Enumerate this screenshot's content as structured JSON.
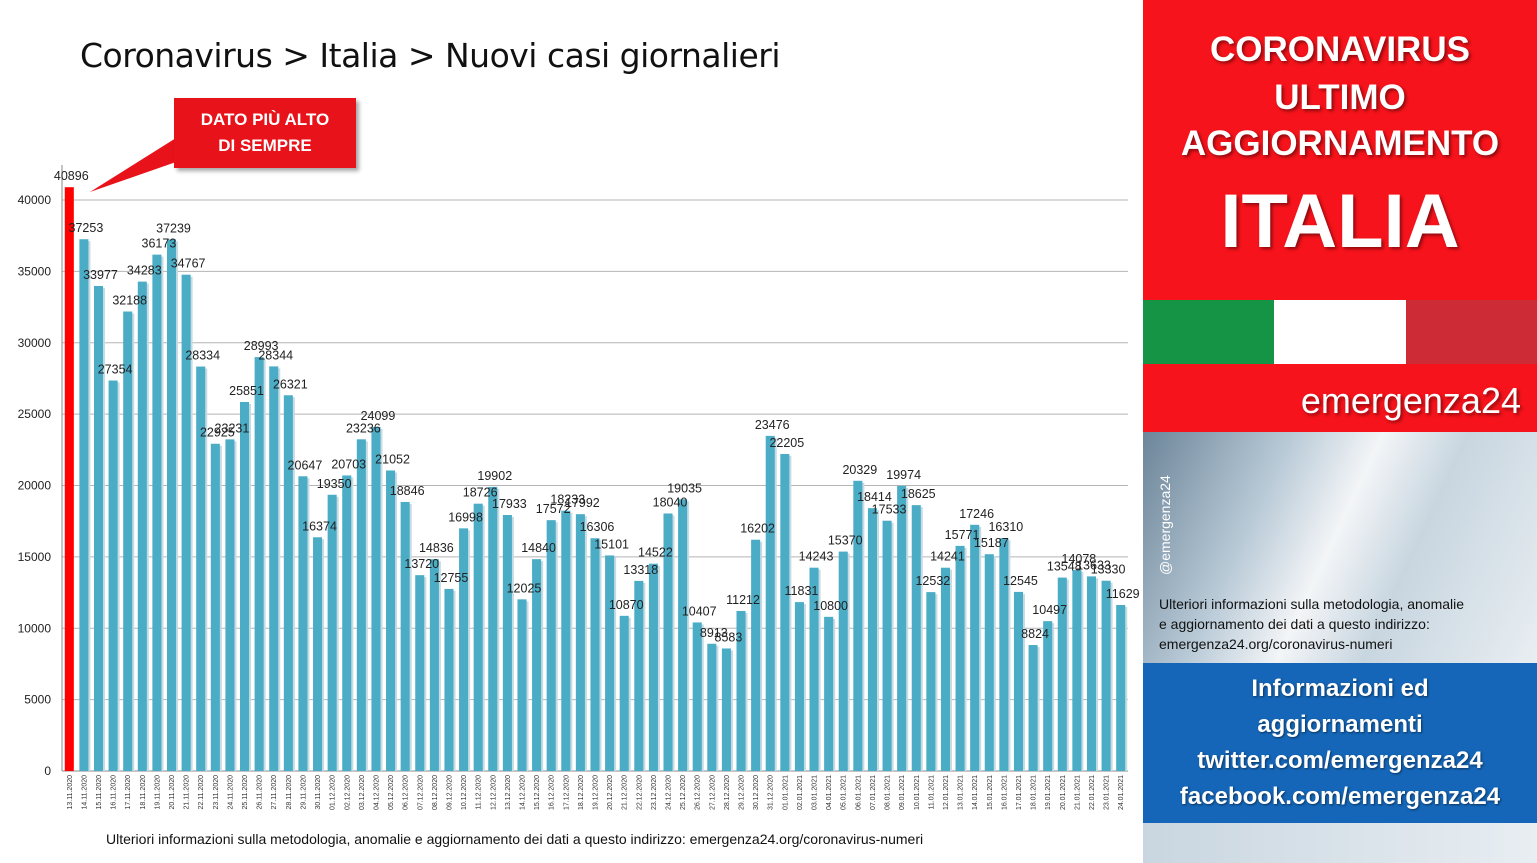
{
  "title": "Coronavirus > Italia > Nuovi casi giornalieri",
  "callout": {
    "line1": "DATO PIÙ ALTO",
    "line2": "DI SEMPRE"
  },
  "footer_note": "Ulteriori informazioni sulla metodologia, anomalie e aggiornamento dei dati a questo indirizzo: emergenza24.org/coronavirus-numeri",
  "sidebar": {
    "headline1": "CORONAVIRUS",
    "headline2": "ULTIMO",
    "headline3": "AGGIORNAMENTO",
    "country": "ITALIA",
    "brand": "emergenza24",
    "handle": "@emergenza24",
    "note_line1": "Ulteriori informazioni sulla metodologia, anomalie",
    "note_line2": "e aggiornamento dei dati a questo indirizzo:",
    "note_line3": "emergenza24.org/coronavirus-numeri",
    "info1": "Informazioni ed",
    "info2": "aggiornamenti",
    "info3": "twitter.com/emergenza24",
    "info4": "facebook.com/emergenza24"
  },
  "colors": {
    "bar": "#4bacc6",
    "highlight": "#ff0000",
    "red": "#f7131b",
    "blue": "#1566b8"
  },
  "chart_data": {
    "type": "bar",
    "ylim": [
      0,
      40000
    ],
    "yticks": [
      0,
      5000,
      10000,
      15000,
      20000,
      25000,
      30000,
      35000,
      40000
    ],
    "grid": true,
    "categories": [
      "13.11.2020",
      "14.11.2020",
      "15.11.2020",
      "16.11.2020",
      "17.11.2020",
      "18.11.2020",
      "19.11.2020",
      "20.11.2020",
      "21.11.2020",
      "22.11.2020",
      "23.11.2020",
      "24.11.2020",
      "25.11.2020",
      "26.11.2020",
      "27.11.2020",
      "28.11.2020",
      "29.11.2020",
      "30.11.2020",
      "01.12.2020",
      "02.12.2020",
      "03.12.2020",
      "04.12.2020",
      "05.12.2020",
      "06.12.2020",
      "07.12.2020",
      "08.12.2020",
      "09.12.2020",
      "10.12.2020",
      "11.12.2020",
      "12.12.2020",
      "13.12.2020",
      "14.12.2020",
      "15.12.2020",
      "16.12.2020",
      "17.12.2020",
      "18.12.2020",
      "19.12.2020",
      "20.12.2020",
      "21.12.2020",
      "22.12.2020",
      "23.12.2020",
      "24.12.2020",
      "25.12.2020",
      "26.12.2020",
      "27.12.2020",
      "28.12.2020",
      "29.12.2020",
      "30.12.2020",
      "31.12.2020",
      "01.01.2021",
      "02.01.2021",
      "03.01.2021",
      "04.01.2021",
      "05.01.2021",
      "06.01.2021",
      "07.01.2021",
      "08.01.2021",
      "09.01.2021",
      "10.01.2021",
      "11.01.2021",
      "12.01.2021",
      "13.01.2021",
      "14.01.2021",
      "15.01.2021",
      "16.01.2021",
      "17.01.2021",
      "18.01.2021",
      "19.01.2021",
      "20.01.2021",
      "21.01.2021",
      "22.01.2021",
      "23.01.2021",
      "24.01.2021"
    ],
    "values": [
      40896,
      37253,
      33977,
      27354,
      32188,
      34283,
      36173,
      37239,
      34767,
      28334,
      22925,
      23231,
      25851,
      28993,
      28344,
      26321,
      20647,
      16374,
      19350,
      20703,
      23236,
      24099,
      21052,
      18846,
      13720,
      14836,
      12755,
      16998,
      18726,
      19902,
      17933,
      12025,
      14840,
      17572,
      18233,
      17992,
      16306,
      15101,
      10870,
      13318,
      14522,
      18040,
      19035,
      10407,
      8913,
      8583,
      11212,
      16202,
      23476,
      22205,
      11831,
      14243,
      10800,
      15370,
      20329,
      18414,
      17533,
      19974,
      18625,
      12532,
      14241,
      15771,
      17246,
      15187,
      16310,
      12545,
      8824,
      10497,
      13548,
      14078,
      13633,
      13330,
      11629
    ],
    "highlight_index": 0
  }
}
